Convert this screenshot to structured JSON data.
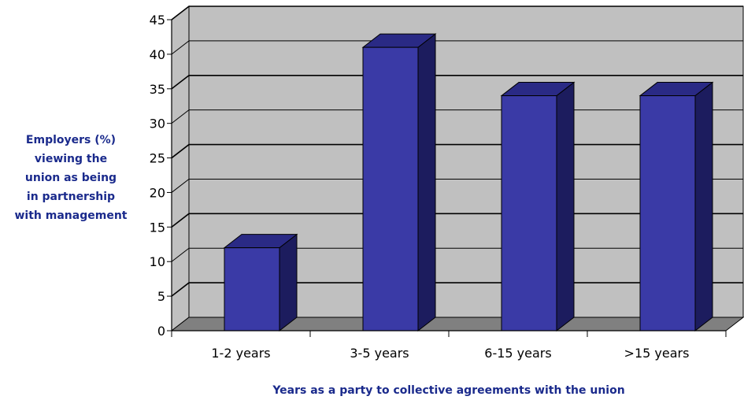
{
  "chart_data": {
    "type": "bar",
    "categories": [
      "1-2 years",
      "3-5 years",
      "6-15 years",
      ">15 years"
    ],
    "values": [
      12,
      41,
      34,
      34
    ],
    "ylabel_lines": [
      "Employers (%)",
      "viewing the",
      "union as being",
      "in partnership",
      "with management"
    ],
    "xlabel": "Years as a party to collective agreements with the union",
    "ylim": [
      0,
      45
    ],
    "yticks": [
      0,
      5,
      10,
      15,
      20,
      25,
      30,
      35,
      40,
      45
    ],
    "grid": true,
    "colors": {
      "bar_front": "#3a3aa6",
      "bar_side": "#1c1c5e",
      "bar_top": "#2a2a85",
      "wall": "#c0c0c0",
      "floor": "#808080"
    }
  }
}
